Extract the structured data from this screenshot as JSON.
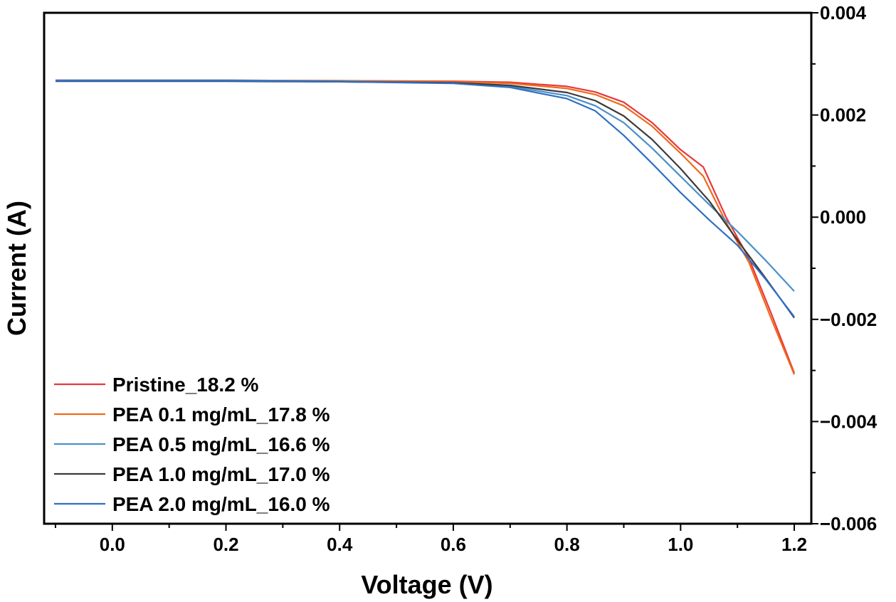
{
  "chart_data": {
    "type": "line",
    "xlabel": "Voltage (V)",
    "ylabel": "Current (A)",
    "xlim": [
      -0.12,
      1.23
    ],
    "ylim": [
      -0.006,
      0.004
    ],
    "x_ticks": [
      0.0,
      0.2,
      0.4,
      0.6,
      0.8,
      1.0,
      1.2
    ],
    "x_tick_labels": [
      "0.0",
      "0.2",
      "0.4",
      "0.6",
      "0.8",
      "1.0",
      "1.2"
    ],
    "y_ticks": [
      0.004,
      0.002,
      0.0,
      -0.002,
      -0.004,
      -0.006
    ],
    "y_tick_labels": [
      "0.004",
      "0.002",
      "0.000",
      "−0.002",
      "−0.004",
      "−0.006"
    ],
    "y_axis_side": "right",
    "grid": false,
    "legend_position": "bottom-left",
    "series": [
      {
        "name": "Pristine_18.2 %",
        "color": "#e8383b",
        "points": [
          [
            -0.1,
            0.00268
          ],
          [
            0.0,
            0.00268
          ],
          [
            0.2,
            0.00268
          ],
          [
            0.4,
            0.00267
          ],
          [
            0.6,
            0.00266
          ],
          [
            0.7,
            0.00264
          ],
          [
            0.8,
            0.00256
          ],
          [
            0.85,
            0.00245
          ],
          [
            0.9,
            0.00225
          ],
          [
            0.95,
            0.00185
          ],
          [
            1.0,
            0.00132
          ],
          [
            1.04,
            0.00098
          ],
          [
            1.08,
            0.0
          ],
          [
            1.12,
            -0.0008
          ],
          [
            1.16,
            -0.0019
          ],
          [
            1.2,
            -0.00305
          ]
        ]
      },
      {
        "name": "PEA 0.1 mg/mL_17.8 %",
        "color": "#ef6a1a",
        "points": [
          [
            -0.1,
            0.00268
          ],
          [
            0.0,
            0.00268
          ],
          [
            0.2,
            0.00268
          ],
          [
            0.4,
            0.00267
          ],
          [
            0.6,
            0.00265
          ],
          [
            0.7,
            0.00262
          ],
          [
            0.8,
            0.00252
          ],
          [
            0.85,
            0.0024
          ],
          [
            0.9,
            0.00218
          ],
          [
            0.95,
            0.00178
          ],
          [
            1.0,
            0.00125
          ],
          [
            1.04,
            0.0008
          ],
          [
            1.08,
            -0.0001
          ],
          [
            1.12,
            -0.00088
          ],
          [
            1.16,
            -0.002
          ],
          [
            1.2,
            -0.00308
          ]
        ]
      },
      {
        "name": "PEA 0.5 mg/mL_16.6 %",
        "color": "#4a90c8",
        "points": [
          [
            -0.1,
            0.00268
          ],
          [
            0.0,
            0.00268
          ],
          [
            0.2,
            0.00268
          ],
          [
            0.4,
            0.00266
          ],
          [
            0.6,
            0.00263
          ],
          [
            0.7,
            0.00256
          ],
          [
            0.8,
            0.00238
          ],
          [
            0.85,
            0.00218
          ],
          [
            0.9,
            0.00185
          ],
          [
            0.95,
            0.00135
          ],
          [
            1.0,
            0.0008
          ],
          [
            1.05,
            0.00025
          ],
          [
            1.1,
            -0.00028
          ],
          [
            1.15,
            -0.00085
          ],
          [
            1.2,
            -0.00145
          ]
        ]
      },
      {
        "name": "PEA 1.0 mg/mL_17.0 %",
        "color": "#3a3a3a",
        "points": [
          [
            -0.1,
            0.00266
          ],
          [
            0.0,
            0.00266
          ],
          [
            0.2,
            0.00266
          ],
          [
            0.4,
            0.00265
          ],
          [
            0.6,
            0.00263
          ],
          [
            0.7,
            0.00258
          ],
          [
            0.8,
            0.00244
          ],
          [
            0.85,
            0.00228
          ],
          [
            0.9,
            0.00198
          ],
          [
            0.95,
            0.00152
          ],
          [
            1.0,
            0.00095
          ],
          [
            1.05,
            0.00032
          ],
          [
            1.1,
            -0.00045
          ],
          [
            1.15,
            -0.0012
          ],
          [
            1.2,
            -0.00197
          ]
        ]
      },
      {
        "name": "PEA 2.0 mg/mL_16.0 %",
        "color": "#2f6fc6",
        "points": [
          [
            -0.1,
            0.00267
          ],
          [
            0.0,
            0.00267
          ],
          [
            0.2,
            0.00267
          ],
          [
            0.4,
            0.00265
          ],
          [
            0.6,
            0.00262
          ],
          [
            0.7,
            0.00254
          ],
          [
            0.8,
            0.00232
          ],
          [
            0.85,
            0.00208
          ],
          [
            0.9,
            0.0016
          ],
          [
            0.95,
            0.00105
          ],
          [
            1.0,
            0.00048
          ],
          [
            1.05,
            -5e-05
          ],
          [
            1.1,
            -0.00055
          ],
          [
            1.15,
            -0.00122
          ],
          [
            1.2,
            -0.00195
          ]
        ]
      }
    ]
  }
}
